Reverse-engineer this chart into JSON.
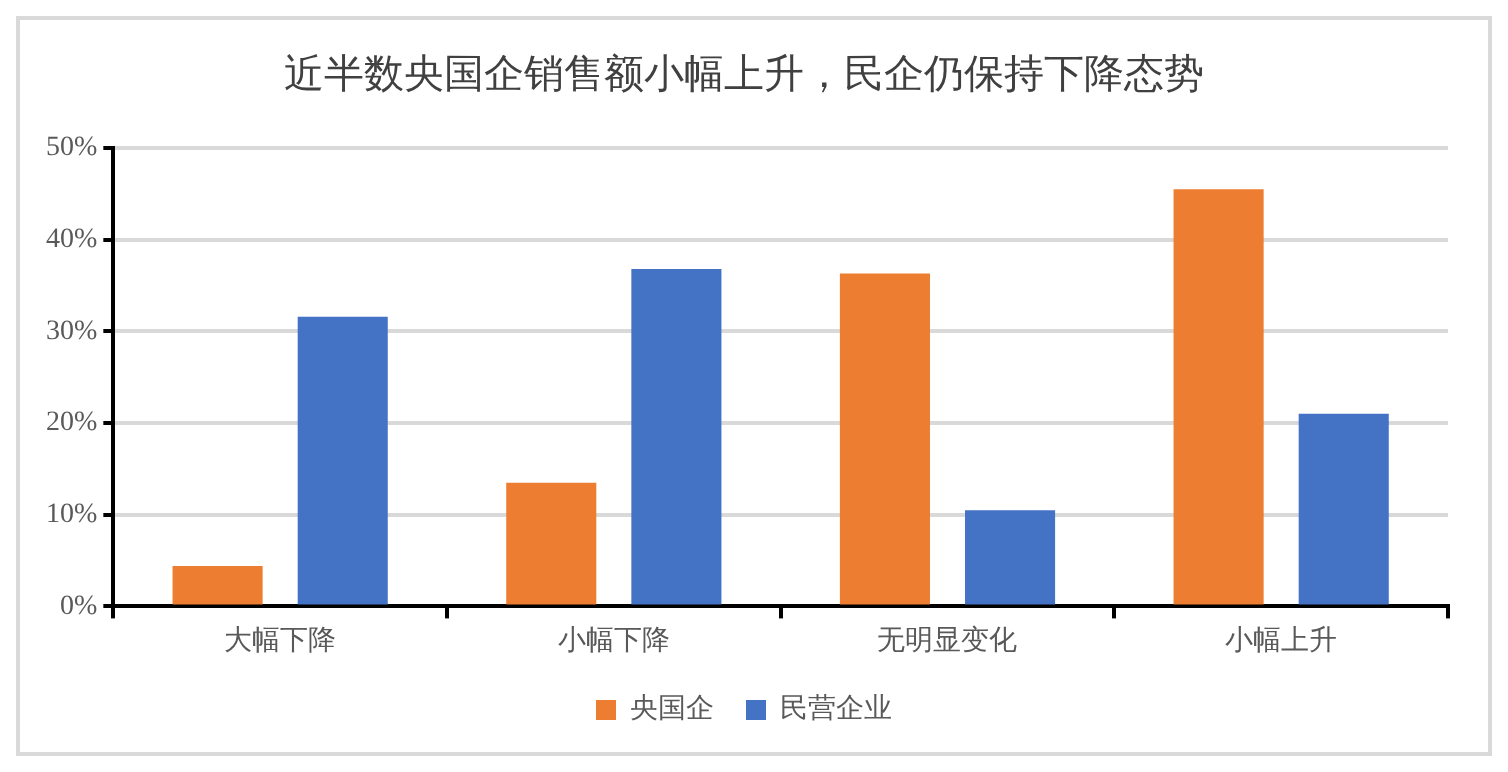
{
  "chart_data": {
    "type": "bar",
    "title": "近半数央国企销售额小幅上升，民企仍保持下降态势",
    "categories": [
      "大幅下降",
      "小幅下降",
      "无明显变化",
      "小幅上升"
    ],
    "series": [
      {
        "name": "央国企",
        "color": "#ed7d31",
        "values": [
          4.4,
          13.5,
          36.3,
          45.5
        ]
      },
      {
        "name": "民营企业",
        "color": "#4472c4",
        "values": [
          31.6,
          36.8,
          10.5,
          21.0
        ]
      }
    ],
    "ylim": [
      0,
      50
    ],
    "yticks": [
      {
        "value": 0,
        "label": "0%"
      },
      {
        "value": 10,
        "label": "10%"
      },
      {
        "value": 20,
        "label": "20%"
      },
      {
        "value": 30,
        "label": "30%"
      },
      {
        "value": 40,
        "label": "40%"
      },
      {
        "value": 50,
        "label": "50%"
      }
    ],
    "grid": "y",
    "legend": "bottom"
  }
}
